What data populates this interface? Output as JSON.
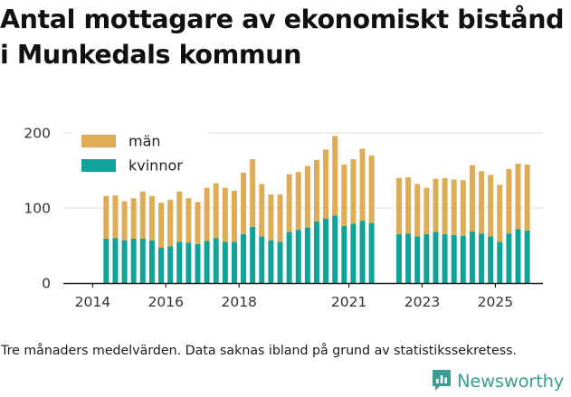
{
  "title_line1": "Antal mottagare av ekonomiskt bistånd",
  "title_line2": "i Munkedals kommun",
  "caption": "Tre månaders medelvärden. Data saknas ibland på grund av statistikssekretess.",
  "logo_text": "Newsworthy",
  "colors": {
    "man": "#dfac56",
    "kvinnor": "#0fa39a",
    "grid": "#dcdcdc",
    "axis": "#222222",
    "logo": "#3a9e93"
  },
  "chart_data": {
    "type": "bar",
    "stacked": true,
    "title": "Antal mottagare av ekonomiskt bistånd i Munkedals kommun",
    "xlabel": "",
    "ylabel": "",
    "ylim": [
      0,
      220
    ],
    "yticks": [
      0,
      100,
      200
    ],
    "xticks": [
      {
        "label": "2014",
        "x": 2014.0
      },
      {
        "label": "2016",
        "x": 2016.0
      },
      {
        "label": "2018",
        "x": 2018.0
      },
      {
        "label": "2021",
        "x": 2021.0
      },
      {
        "label": "2023",
        "x": 2023.0
      },
      {
        "label": "2025",
        "x": 2025.0
      }
    ],
    "xlim": [
      2013.2,
      2026.3
    ],
    "legend": [
      "män",
      "kvinnor"
    ],
    "legend_position": "top-left",
    "grid": "horizontal",
    "x": [
      2014.37,
      2014.62,
      2014.87,
      2015.12,
      2015.37,
      2015.62,
      2015.87,
      2016.12,
      2016.37,
      2016.62,
      2016.87,
      2017.12,
      2017.37,
      2017.62,
      2017.87,
      2018.12,
      2018.37,
      2018.62,
      2018.87,
      2019.12,
      2019.37,
      2019.62,
      2019.87,
      2020.12,
      2020.37,
      2020.62,
      2020.87,
      2021.12,
      2021.37,
      2021.62,
      2022.37,
      2022.62,
      2022.87,
      2023.12,
      2023.37,
      2023.62,
      2023.87,
      2024.12,
      2024.37,
      2024.62,
      2024.87,
      2025.12,
      2025.37,
      2025.62,
      2025.87
    ],
    "series": [
      {
        "name": "kvinnor",
        "values": [
          59,
          60,
          57,
          59,
          59,
          57,
          47,
          49,
          55,
          54,
          52,
          56,
          60,
          55,
          55,
          65,
          75,
          62,
          57,
          55,
          68,
          71,
          74,
          82,
          86,
          90,
          76,
          79,
          83,
          80,
          65,
          66,
          62,
          65,
          68,
          65,
          64,
          63,
          69,
          66,
          62,
          55,
          66,
          72,
          70
        ]
      },
      {
        "name": "män",
        "values": [
          57,
          57,
          52,
          54,
          63,
          59,
          60,
          62,
          67,
          59,
          56,
          71,
          73,
          72,
          68,
          82,
          90,
          70,
          61,
          63,
          77,
          77,
          82,
          82,
          92,
          106,
          82,
          86,
          96,
          90,
          75,
          75,
          70,
          62,
          71,
          75,
          74,
          74,
          88,
          83,
          82,
          76,
          86,
          87,
          88
        ]
      }
    ]
  }
}
